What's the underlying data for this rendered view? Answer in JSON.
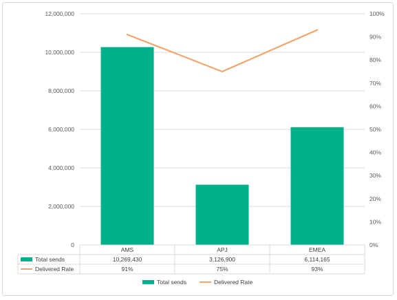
{
  "chart_data": {
    "type": "bar",
    "categories": [
      "AMS",
      "APJ",
      "EMEA"
    ],
    "series": [
      {
        "name": "Total sends",
        "type": "bar",
        "axis": "left",
        "values": [
          10269430,
          3126900,
          6114165
        ],
        "labels": [
          "10,269,430",
          "3,126,900",
          "6,114,165"
        ]
      },
      {
        "name": "Delivered Rate",
        "type": "line",
        "axis": "right",
        "values": [
          0.91,
          0.75,
          0.93
        ],
        "labels": [
          "91%",
          "75%",
          "93%"
        ]
      }
    ],
    "y_left": {
      "min": 0,
      "max": 12000000,
      "ticks": [
        "0",
        "2,000,000",
        "4,000,000",
        "6,000,000",
        "8,000,000",
        "10,000,000",
        "12,000,000"
      ]
    },
    "y_right": {
      "min": 0,
      "max": 1,
      "ticks": [
        "0%",
        "10%",
        "20%",
        "30%",
        "40%",
        "50%",
        "60%",
        "70%",
        "80%",
        "90%",
        "100%"
      ]
    },
    "grid": true,
    "legend": "bottom",
    "data_table": true,
    "colors": {
      "bar": "#00b08a",
      "line": "#f4a36c",
      "grid": "#d9d9d9",
      "text": "#595959"
    }
  }
}
